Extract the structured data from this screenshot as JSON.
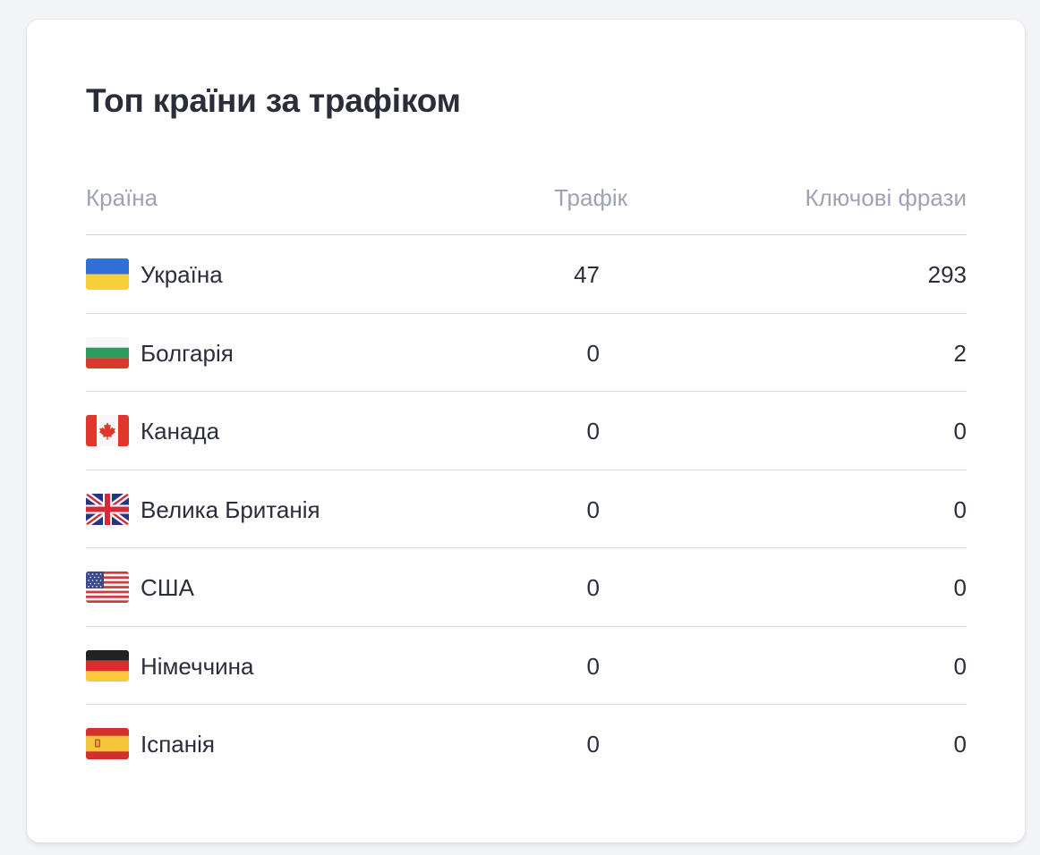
{
  "widget": {
    "title": "Топ країни за трафіком"
  },
  "table": {
    "headers": {
      "country": "Країна",
      "traffic": "Трафік",
      "phrases": "Ключові фрази"
    },
    "rows": [
      {
        "country": "Україна",
        "flag": "ukraine-flag-icon",
        "traffic": "47",
        "phrases": "293"
      },
      {
        "country": "Болгарія",
        "flag": "bulgaria-flag-icon",
        "traffic": "0",
        "phrases": "2"
      },
      {
        "country": "Канада",
        "flag": "canada-flag-icon",
        "traffic": "0",
        "phrases": "0"
      },
      {
        "country": "Велика Британія",
        "flag": "uk-flag-icon",
        "traffic": "0",
        "phrases": "0"
      },
      {
        "country": "США",
        "flag": "usa-flag-icon",
        "traffic": "0",
        "phrases": "0"
      },
      {
        "country": "Німеччина",
        "flag": "germany-flag-icon",
        "traffic": "0",
        "phrases": "0"
      },
      {
        "country": "Іспанія",
        "flag": "spain-flag-icon",
        "traffic": "0",
        "phrases": "0"
      }
    ]
  },
  "colors": {
    "background": "#f3f4f8",
    "card": "#ffffff",
    "text": "#2a2d3a",
    "header_text": "#9ea3b1",
    "divider": "#d6d9e0"
  }
}
